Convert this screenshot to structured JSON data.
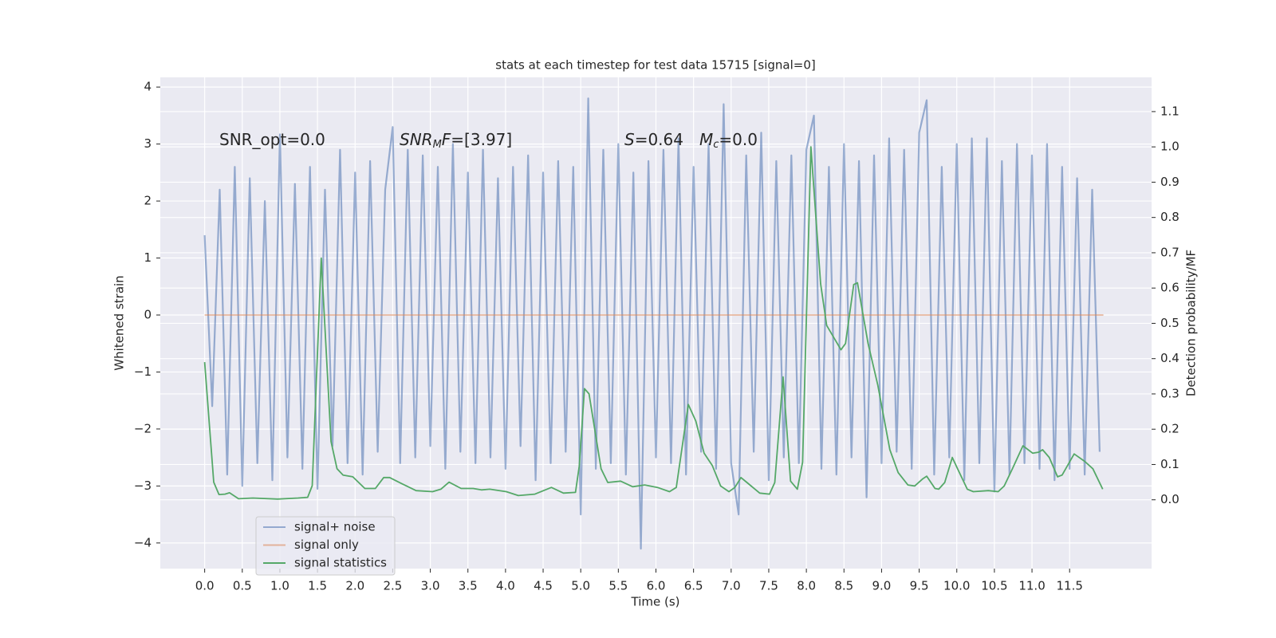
{
  "chart_data": {
    "type": "line",
    "title": "stats at each timestep for test data 15715 [signal=0]",
    "xlabel": "Time (s)",
    "ylabel": "Whitened strain",
    "y2label": "Detection probability/MF",
    "xlim": [
      -0.59,
      12.59
    ],
    "ylim": [
      -4.45,
      4.17
    ],
    "y2lim": [
      -0.195,
      1.197
    ],
    "grid": true,
    "legend": "lower left",
    "xticks": [
      {
        "value": 0,
        "label": "0.0"
      },
      {
        "value": 0.5,
        "label": "0.5"
      },
      {
        "value": 1,
        "label": "1.0"
      },
      {
        "value": 1.5,
        "label": "1.5"
      },
      {
        "value": 2,
        "label": "2.0"
      },
      {
        "value": 2.5,
        "label": "2.5"
      },
      {
        "value": 3,
        "label": "3.0"
      },
      {
        "value": 3.5,
        "label": "3.5"
      },
      {
        "value": 4,
        "label": "4.0"
      },
      {
        "value": 4.5,
        "label": "4.5"
      },
      {
        "value": 5,
        "label": "5.0"
      },
      {
        "value": 5.5,
        "label": "5.5"
      },
      {
        "value": 6,
        "label": "6.0"
      },
      {
        "value": 6.5,
        "label": "6.5"
      },
      {
        "value": 7,
        "label": "7.0"
      },
      {
        "value": 7.5,
        "label": "7.5"
      },
      {
        "value": 8,
        "label": "8.0"
      },
      {
        "value": 8.5,
        "label": "8.5"
      },
      {
        "value": 9,
        "label": "9.0"
      },
      {
        "value": 9.5,
        "label": "9.5"
      },
      {
        "value": 10,
        "label": "10.0"
      },
      {
        "value": 10.5,
        "label": "10.5"
      },
      {
        "value": 11,
        "label": "11.0"
      },
      {
        "value": 11.5,
        "label": "11.5"
      }
    ],
    "yticks": [
      {
        "value": -4,
        "label": "−4"
      },
      {
        "value": -3,
        "label": "−3"
      },
      {
        "value": -2,
        "label": "−2"
      },
      {
        "value": -1,
        "label": "−1"
      },
      0,
      1,
      2,
      3,
      4
    ],
    "y2ticks": [
      {
        "value": 0,
        "label": "0.0"
      },
      {
        "value": 0.1,
        "label": "0.1"
      },
      {
        "value": 0.2,
        "label": "0.2"
      },
      {
        "value": 0.3,
        "label": "0.3"
      },
      {
        "value": 0.4,
        "label": "0.4"
      },
      {
        "value": 0.5,
        "label": "0.5"
      },
      {
        "value": 0.6,
        "label": "0.6"
      },
      {
        "value": 0.7,
        "label": "0.7"
      },
      {
        "value": 0.8,
        "label": "0.8"
      },
      {
        "value": 0.9,
        "label": "0.9"
      },
      {
        "value": 1,
        "label": "1.0"
      },
      {
        "value": 1.1,
        "label": "1.1"
      }
    ],
    "annotations": [
      {
        "parts": [
          {
            "text": "SNR_opt=0.0"
          }
        ]
      },
      {
        "parts": [
          {
            "text": "SNR",
            "italic": true
          },
          {
            "text": "M",
            "italic": true,
            "sub": true
          },
          {
            "text": "F",
            "italic": true
          },
          {
            "text": "=[3.97]"
          }
        ]
      },
      {
        "parts": [
          {
            "text": "S",
            "italic": true
          },
          {
            "text": "=0.64"
          }
        ]
      },
      {
        "parts": [
          {
            "text": "M",
            "italic": true
          },
          {
            "text": "c",
            "italic": true,
            "sub": true
          },
          {
            "text": "=0.0"
          }
        ]
      }
    ],
    "series": [
      {
        "name": "signal+ noise",
        "color": "#4c72b0",
        "alpha": 0.55,
        "x": [
          0.0,
          0.1,
          0.2,
          0.3,
          0.4,
          0.5,
          0.6,
          0.7,
          0.8,
          0.9,
          1.0,
          1.1,
          1.2,
          1.3,
          1.4,
          1.5,
          1.6,
          1.7,
          1.8,
          1.9,
          2.0,
          2.1,
          2.2,
          2.3,
          2.4,
          2.5,
          2.6,
          2.7,
          2.8,
          2.9,
          3.0,
          3.1,
          3.2,
          3.3,
          3.4,
          3.5,
          3.6,
          3.7,
          3.8,
          3.9,
          4.0,
          4.1,
          4.2,
          4.3,
          4.4,
          4.5,
          4.6,
          4.7,
          4.8,
          4.9,
          5.0,
          5.1,
          5.2,
          5.3,
          5.4,
          5.5,
          5.6,
          5.7,
          5.8,
          5.9,
          6.0,
          6.1,
          6.2,
          6.3,
          6.4,
          6.5,
          6.6,
          6.7,
          6.8,
          6.9,
          7.0,
          7.1,
          7.2,
          7.3,
          7.4,
          7.5,
          7.6,
          7.7,
          7.8,
          7.9,
          8.0,
          8.1,
          8.2,
          8.3,
          8.4,
          8.5,
          8.6,
          8.7,
          8.8,
          8.9,
          9.0,
          9.1,
          9.2,
          9.3,
          9.4,
          9.5,
          9.6,
          9.7,
          9.8,
          9.9,
          10.0,
          10.1,
          10.2,
          10.3,
          10.4,
          10.5,
          10.6,
          10.7,
          10.8,
          10.9,
          11.0,
          11.1,
          11.2,
          11.3,
          11.4,
          11.5,
          11.6,
          11.7,
          11.8,
          11.9
        ],
        "values": [
          1.4,
          -1.6,
          2.2,
          -2.8,
          2.6,
          -3.0,
          2.4,
          -2.6,
          2.0,
          -2.9,
          3.17,
          -2.5,
          2.3,
          -2.7,
          2.6,
          -3.05,
          2.2,
          -2.3,
          2.9,
          -2.6,
          2.5,
          -2.8,
          2.7,
          -2.4,
          2.2,
          3.3,
          -2.6,
          2.9,
          -2.5,
          2.8,
          -2.3,
          2.6,
          -2.7,
          3.0,
          -2.4,
          2.5,
          -2.6,
          2.9,
          -2.5,
          2.4,
          -2.7,
          2.6,
          -2.3,
          2.8,
          -2.9,
          2.5,
          -2.6,
          2.7,
          -2.4,
          2.6,
          -3.5,
          3.8,
          -2.7,
          2.9,
          -2.6,
          3.0,
          -2.8,
          2.5,
          -4.1,
          2.7,
          -2.5,
          2.9,
          -2.6,
          3.1,
          -2.8,
          2.6,
          -2.4,
          3.0,
          -2.7,
          3.7,
          -2.6,
          -3.5,
          2.8,
          -2.4,
          3.2,
          -2.9,
          2.7,
          -2.5,
          2.8,
          -2.6,
          2.9,
          3.5,
          -2.7,
          2.6,
          -2.8,
          3.0,
          -2.5,
          2.7,
          -3.2,
          2.8,
          -2.6,
          3.1,
          -2.4,
          2.9,
          -2.7,
          3.2,
          3.77,
          -2.8,
          2.6,
          -2.5,
          3.0,
          -2.9,
          3.1,
          -2.6,
          3.1,
          -3.1,
          2.7,
          -2.8,
          3.0,
          -2.6,
          2.8,
          -2.7,
          3.0,
          -2.9,
          2.6,
          -2.7,
          2.4,
          -2.8,
          2.2,
          -2.4
        ]
      },
      {
        "name": "signal only",
        "color": "#dd8452",
        "alpha": 0.55,
        "x": [
          0.0,
          11.95
        ],
        "values": [
          0,
          0
        ]
      },
      {
        "name": "signal statistics",
        "color": "#55a868",
        "alpha": 1,
        "axis": "y2",
        "x": [
          0,
          0.12,
          0.19,
          0.27,
          0.33,
          0.45,
          0.64,
          0.97,
          1.24,
          1.37,
          1.43,
          1.55,
          1.68,
          1.76,
          1.84,
          1.97,
          2.13,
          2.27,
          2.38,
          2.46,
          2.62,
          2.81,
          3.03,
          3.14,
          3.25,
          3.41,
          3.57,
          3.68,
          3.79,
          4.01,
          4.17,
          4.39,
          4.61,
          4.77,
          4.93,
          4.98,
          5.05,
          5.11,
          5.27,
          5.36,
          5.53,
          5.69,
          5.85,
          6.02,
          6.18,
          6.27,
          6.43,
          6.53,
          6.64,
          6.75,
          6.86,
          6.97,
          7.05,
          7.13,
          7.21,
          7.38,
          7.51,
          7.58,
          7.69,
          7.79,
          7.88,
          7.95,
          8.06,
          8.19,
          8.27,
          8.46,
          8.52,
          8.63,
          8.68,
          8.82,
          8.95,
          9.11,
          9.22,
          9.35,
          9.44,
          9.55,
          9.6,
          9.71,
          9.76,
          9.84,
          9.94,
          10.01,
          10.14,
          10.22,
          10.42,
          10.55,
          10.63,
          10.74,
          10.88,
          11.01,
          11.09,
          11.14,
          11.23,
          11.34,
          11.4,
          11.56,
          11.7,
          11.81,
          11.94
        ],
        "values": [
          0.39,
          0.05,
          0.015,
          0.016,
          0.02,
          0.003,
          0.005,
          0.002,
          0.005,
          0.007,
          0.04,
          0.685,
          0.165,
          0.088,
          0.07,
          0.065,
          0.032,
          0.032,
          0.063,
          0.063,
          0.046,
          0.026,
          0.023,
          0.03,
          0.05,
          0.032,
          0.032,
          0.028,
          0.03,
          0.023,
          0.012,
          0.016,
          0.035,
          0.019,
          0.021,
          0.095,
          0.315,
          0.3,
          0.088,
          0.049,
          0.053,
          0.037,
          0.042,
          0.035,
          0.023,
          0.035,
          0.27,
          0.223,
          0.132,
          0.097,
          0.039,
          0.023,
          0.035,
          0.063,
          0.049,
          0.019,
          0.016,
          0.049,
          0.348,
          0.053,
          0.03,
          0.107,
          1.0,
          0.612,
          0.494,
          0.425,
          0.443,
          0.61,
          0.615,
          0.443,
          0.325,
          0.142,
          0.077,
          0.042,
          0.039,
          0.06,
          0.067,
          0.032,
          0.03,
          0.049,
          0.12,
          0.088,
          0.03,
          0.023,
          0.026,
          0.023,
          0.039,
          0.088,
          0.153,
          0.132,
          0.135,
          0.142,
          0.12,
          0.065,
          0.07,
          0.13,
          0.109,
          0.088,
          0.03
        ]
      }
    ]
  }
}
